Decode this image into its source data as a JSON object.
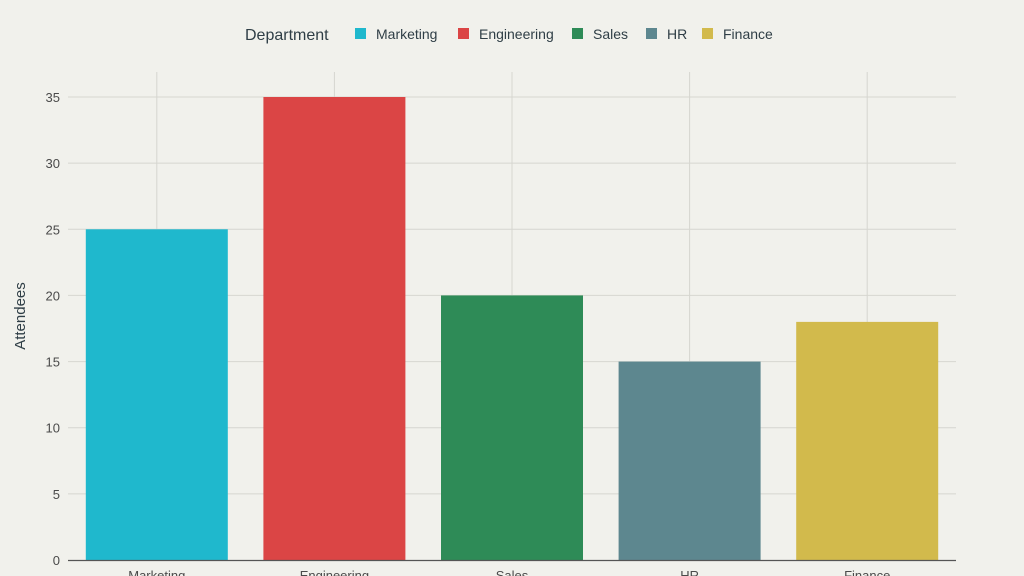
{
  "chart_data": {
    "type": "bar",
    "title": "",
    "categories": [
      "Marketing",
      "Engineering",
      "Sales",
      "HR",
      "Finance"
    ],
    "values": [
      25,
      35,
      20,
      15,
      18
    ],
    "colors": [
      "#1fb8cd",
      "#db4545",
      "#2e8b57",
      "#5d878f",
      "#d2ba4c"
    ],
    "xlabel": "",
    "ylabel": "Attendees",
    "ylim": [
      0,
      37
    ],
    "yticks": [
      0,
      5,
      10,
      15,
      20,
      25,
      30,
      35
    ],
    "grid": true,
    "legend": {
      "title": "Department",
      "position": "top-center",
      "entries": [
        "Marketing",
        "Engineering",
        "Sales",
        "HR",
        "Finance"
      ]
    }
  }
}
